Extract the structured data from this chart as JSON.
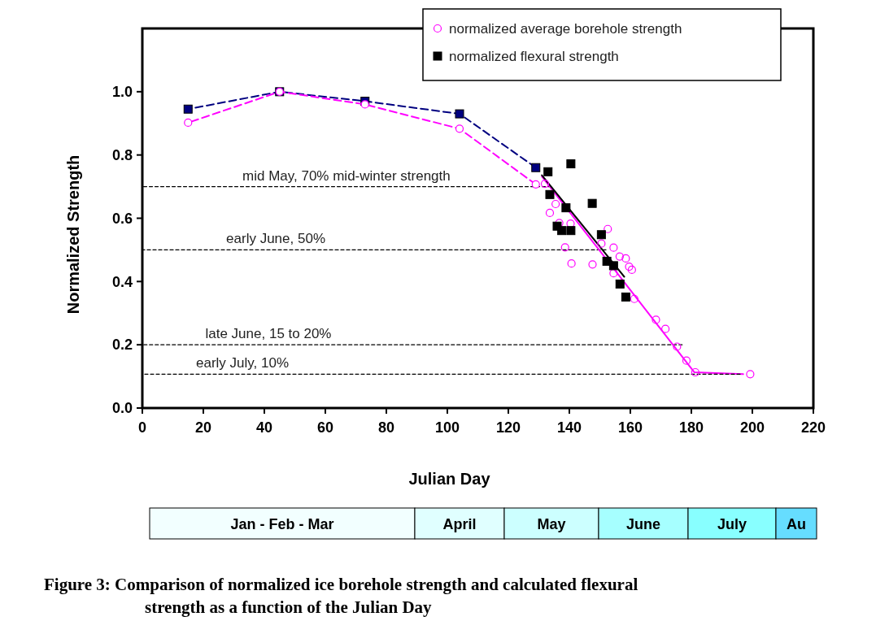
{
  "chart_data": [
    {
      "type": "scatter",
      "title": "Figure 3: Comparison of normalized ice borehole strength and calculated flexural strength as a function of the Julian Day",
      "xlabel": "Julian Day",
      "ylabel": "Normalized Strength",
      "xlim": [
        0,
        220
      ],
      "xticks": [
        0,
        20,
        40,
        60,
        80,
        100,
        120,
        140,
        160,
        180,
        200,
        220
      ],
      "ylim": [
        0,
        1.2
      ],
      "yticks": [
        {
          "value": 0,
          "label": "0.0"
        },
        {
          "value": 0.2,
          "label": "0.2"
        },
        {
          "value": 0.4,
          "label": "0.4"
        },
        {
          "value": 0.6,
          "label": "0.6"
        },
        {
          "value": 0.8,
          "label": "0.8"
        },
        {
          "value": 1,
          "label": "1.0"
        }
      ],
      "grid": false,
      "legend": "top right",
      "series": [
        {
          "type": "line",
          "color": "#000000",
          "line_style": "dashed",
          "marker": "none",
          "x": [
            0,
            134
          ],
          "values": [
            0.7,
            0.7
          ]
        },
        {
          "type": "line",
          "color": "#000000",
          "line_style": "dashed",
          "marker": "none",
          "x": [
            0,
            152
          ],
          "values": [
            0.5,
            0.5
          ]
        },
        {
          "type": "line",
          "color": "#000000",
          "line_style": "dashed",
          "marker": "none",
          "x": [
            0,
            177
          ],
          "values": [
            0.2,
            0.2
          ]
        },
        {
          "type": "line",
          "color": "#000080",
          "line_style": "dashed",
          "marker": "square",
          "x": [
            15,
            45,
            73,
            104,
            129
          ],
          "values": [
            0.945,
            1.0,
            0.97,
            0.93,
            0.76
          ]
        },
        {
          "type": "line",
          "color": "#ff00ff",
          "line_style": "dashed",
          "marker": "circle",
          "x": [
            15,
            45,
            73,
            104,
            129
          ],
          "values": [
            0.902,
            1.0,
            0.96,
            0.883,
            0.707
          ]
        },
        {
          "type": "line",
          "color": "#ff00ff",
          "line_style": "solid",
          "marker": "none",
          "x": [
            131,
            181,
            197
          ],
          "values": [
            0.732,
            0.113,
            0.107
          ]
        },
        {
          "type": "line",
          "color": "#000000",
          "line_style": "dashed",
          "marker": "none",
          "x": [
            0,
            196
          ],
          "values": [
            0.107,
            0.107
          ]
        },
        {
          "type": "line",
          "color": "#000000",
          "line_style": "solid",
          "marker": "none",
          "x": [
            131,
            158
          ],
          "values": [
            0.736,
            0.415
          ]
        },
        {
          "type": "scatter",
          "name": "normalized average borehole strength",
          "color": "#ff00ff",
          "marker": "circle",
          "x": [
            132,
            135.5,
            133.6,
            136.7,
            140.4,
            138.6,
            140.7,
            147.6,
            152.6,
            150.5,
            154.5,
            156.5,
            158.5,
            159.6,
            160.5,
            154.5,
            161.3,
            168.4,
            171.5,
            175.3,
            178.4,
            181.3,
            199.3
          ],
          "values": [
            0.709,
            0.645,
            0.617,
            0.585,
            0.583,
            0.508,
            0.457,
            0.454,
            0.566,
            0.52,
            0.507,
            0.479,
            0.473,
            0.447,
            0.437,
            0.426,
            0.345,
            0.279,
            0.25,
            0.194,
            0.15,
            0.113,
            0.107
          ]
        },
        {
          "type": "scatter",
          "name": "normalized flexural strength",
          "color": "#000000",
          "marker": "square",
          "x": [
            133,
            140.5,
            133.6,
            138.9,
            136,
            137.5,
            140.5,
            147.5,
            150.5,
            152.3,
            154.5,
            156.6,
            158.5
          ],
          "values": [
            0.747,
            0.772,
            0.675,
            0.633,
            0.575,
            0.561,
            0.561,
            0.647,
            0.548,
            0.464,
            0.45,
            0.392,
            0.351
          ]
        }
      ],
      "annotations": [
        {
          "text": "mid May, 70% mid-winter strength",
          "x": 101,
          "y": 0.7
        },
        {
          "text": "early June, 50%",
          "x": 60,
          "y": 0.5
        },
        {
          "text": "late June, 15 to 20%",
          "x": 62,
          "y": 0.2
        },
        {
          "text": "early July, 10%",
          "x": 48,
          "y": 0.107
        }
      ]
    },
    {
      "type": "other",
      "categories": [
        "Jan - Feb - Mar",
        "April",
        "May",
        "June",
        "July",
        "Au"
      ],
      "colors": [
        "#f2ffff",
        "#e0ffff",
        "#ccffff",
        "#a6ffff",
        "#88ffff",
        "#66ddff"
      ]
    }
  ]
}
